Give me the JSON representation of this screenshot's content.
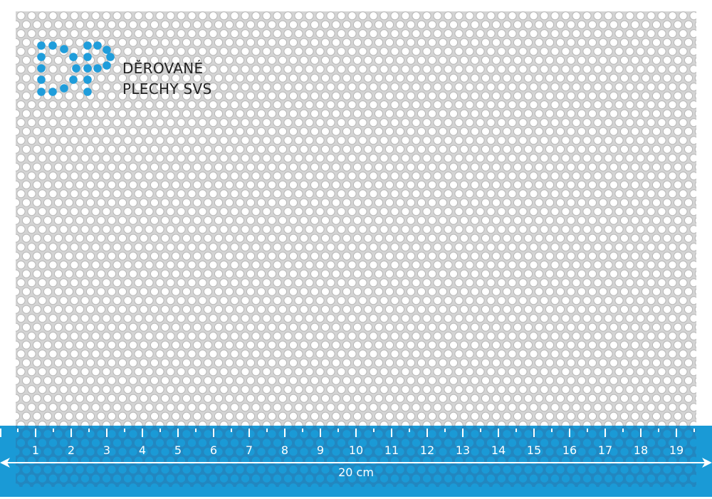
{
  "brand": {
    "line1": "DĚROVANÉ",
    "line2": "PLECHY SVS",
    "logo_text": "DP"
  },
  "ruler": {
    "labels": [
      "1",
      "2",
      "3",
      "4",
      "5",
      "6",
      "7",
      "8",
      "9",
      "10",
      "11",
      "12",
      "13",
      "14",
      "15",
      "16",
      "17",
      "18",
      "19"
    ],
    "length_label": "20 cm"
  },
  "colors": {
    "accent": "#1a9ad6",
    "sheet": "#d9d9d9",
    "hole": "#ffffff",
    "text": "#222222"
  }
}
